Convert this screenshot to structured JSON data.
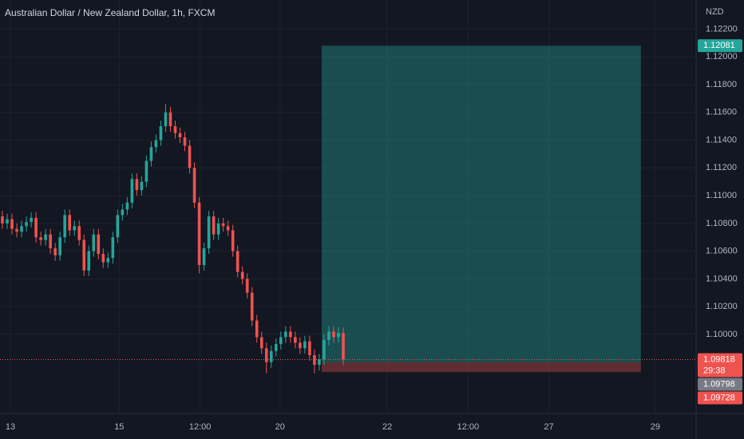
{
  "chart_data": {
    "type": "candlestick",
    "title": "Australian Dollar / New Zealand Dollar, 1h, FXCM",
    "currency": "NZD",
    "up_color": "#26a69a",
    "down_color": "#ef5350",
    "open": [
      1.1085,
      1.108,
      1.1083,
      1.1076,
      1.1074,
      1.1078,
      1.1081,
      1.1084,
      1.107,
      1.1068,
      1.1072,
      1.1062,
      1.1057,
      1.107,
      1.1086,
      1.1075,
      1.1078,
      1.1068,
      1.1046,
      1.106,
      1.1072,
      1.1058,
      1.1052,
      1.1055,
      1.107,
      1.1086,
      1.109,
      1.1095,
      1.1112,
      1.1104,
      1.111,
      1.1125,
      1.1135,
      1.114,
      1.115,
      1.116,
      1.115,
      1.1145,
      1.1142,
      1.1136,
      1.112,
      1.1095,
      1.105,
      1.1062,
      1.1085,
      1.1072,
      1.108,
      1.1078,
      1.1075,
      1.106,
      1.1045,
      1.104,
      1.103,
      1.101,
      1.0998,
      1.099,
      1.098,
      1.0988,
      1.0993,
      1.0998,
      1.1002,
      1.0998,
      1.0994,
      1.099,
      1.0995,
      1.0985,
      1.0978,
      1.0982,
      1.0996,
      1.1002,
      1.0998,
      1.1001
    ],
    "high": [
      1.1089,
      1.1087,
      1.1087,
      1.108,
      1.1082,
      1.1085,
      1.1088,
      1.1088,
      1.1074,
      1.1076,
      1.1076,
      1.1066,
      1.1074,
      1.109,
      1.109,
      1.1082,
      1.1082,
      1.1072,
      1.1064,
      1.1076,
      1.1076,
      1.1062,
      1.1059,
      1.1074,
      1.109,
      1.1094,
      1.1099,
      1.1116,
      1.1116,
      1.1114,
      1.1129,
      1.1139,
      1.1144,
      1.1154,
      1.1166,
      1.1164,
      1.1154,
      1.1149,
      1.1146,
      1.114,
      1.1124,
      1.1099,
      1.1066,
      1.1089,
      1.1089,
      1.1084,
      1.1084,
      1.1082,
      1.1079,
      1.1064,
      1.1049,
      1.1044,
      1.1034,
      1.1014,
      1.1002,
      1.0994,
      1.0992,
      1.0997,
      1.1002,
      1.1006,
      1.1006,
      1.1002,
      1.0998,
      1.0999,
      1.0999,
      1.0989,
      1.0986,
      1.1,
      1.1006,
      1.1006,
      1.1005,
      1.1005
    ],
    "low": [
      1.1076,
      1.1076,
      1.1072,
      1.107,
      1.107,
      1.1074,
      1.1077,
      1.1066,
      1.1064,
      1.1064,
      1.1058,
      1.1053,
      1.1053,
      1.1066,
      1.1071,
      1.1071,
      1.1064,
      1.1042,
      1.1042,
      1.1056,
      1.1054,
      1.1048,
      1.1048,
      1.1051,
      1.1066,
      1.1082,
      1.1086,
      1.1091,
      1.11,
      1.11,
      1.1106,
      1.1121,
      1.1131,
      1.1136,
      1.1146,
      1.1146,
      1.1141,
      1.1138,
      1.1132,
      1.1116,
      1.1091,
      1.1044,
      1.1046,
      1.1058,
      1.1068,
      1.1068,
      1.1074,
      1.1071,
      1.1056,
      1.1041,
      1.1036,
      1.1026,
      1.1006,
      1.0994,
      1.0986,
      1.0972,
      1.0976,
      1.0984,
      1.0989,
      1.0994,
      1.0994,
      1.099,
      1.0986,
      1.0986,
      1.0981,
      1.0972,
      1.0974,
      1.0978,
      1.0992,
      1.0994,
      1.0994,
      1.0978
    ],
    "close": [
      1.108,
      1.1083,
      1.1076,
      1.1074,
      1.1078,
      1.1081,
      1.1084,
      1.107,
      1.1068,
      1.1072,
      1.1062,
      1.1057,
      1.107,
      1.1086,
      1.1075,
      1.1078,
      1.1068,
      1.1046,
      1.106,
      1.1072,
      1.1058,
      1.1052,
      1.1055,
      1.107,
      1.1086,
      1.109,
      1.1095,
      1.1112,
      1.1104,
      1.111,
      1.1125,
      1.1135,
      1.114,
      1.115,
      1.116,
      1.115,
      1.1145,
      1.1142,
      1.1136,
      1.112,
      1.1095,
      1.105,
      1.1062,
      1.1085,
      1.1072,
      1.108,
      1.1078,
      1.1075,
      1.106,
      1.1045,
      1.104,
      1.103,
      1.101,
      1.0998,
      1.099,
      1.098,
      1.0988,
      1.0993,
      1.0998,
      1.1002,
      1.0998,
      1.0994,
      1.099,
      1.0995,
      1.0985,
      1.0978,
      1.0982,
      1.0996,
      1.1002,
      1.0998,
      1.1001,
      1.0982
    ],
    "xlim": [
      -0.5,
      144.5
    ],
    "xticks": [
      {
        "value": 1.67,
        "label": "13"
      },
      {
        "value": 24.33,
        "label": "15"
      },
      {
        "value": 41.17,
        "label": "12:00"
      },
      {
        "value": 57.83,
        "label": "20"
      },
      {
        "value": 80.17,
        "label": "22"
      },
      {
        "value": 97,
        "label": "12:00"
      },
      {
        "value": 113.83,
        "label": "27"
      },
      {
        "value": 136,
        "label": "29"
      }
    ],
    "ylim": [
      1.0943,
      1.1241
    ],
    "yticks": [
      {
        "value": 1.122,
        "label": "1.12200"
      },
      {
        "value": 1.12,
        "label": "1.12000"
      },
      {
        "value": 1.118,
        "label": "1.11800"
      },
      {
        "value": 1.116,
        "label": "1.11600"
      },
      {
        "value": 1.114,
        "label": "1.11400"
      },
      {
        "value": 1.112,
        "label": "1.11200"
      },
      {
        "value": 1.11,
        "label": "1.11000"
      },
      {
        "value": 1.108,
        "label": "1.10800"
      },
      {
        "value": 1.106,
        "label": "1.10600"
      },
      {
        "value": 1.104,
        "label": "1.10400"
      },
      {
        "value": 1.102,
        "label": "1.10200"
      },
      {
        "value": 1.1,
        "label": "1.10000"
      }
    ],
    "grid": true,
    "current_price": 1.09818,
    "countdown": "29:38",
    "position": {
      "start": 66.5,
      "end": 133,
      "entry": 1.09798,
      "target": 1.12081,
      "stop": 1.09728
    }
  }
}
